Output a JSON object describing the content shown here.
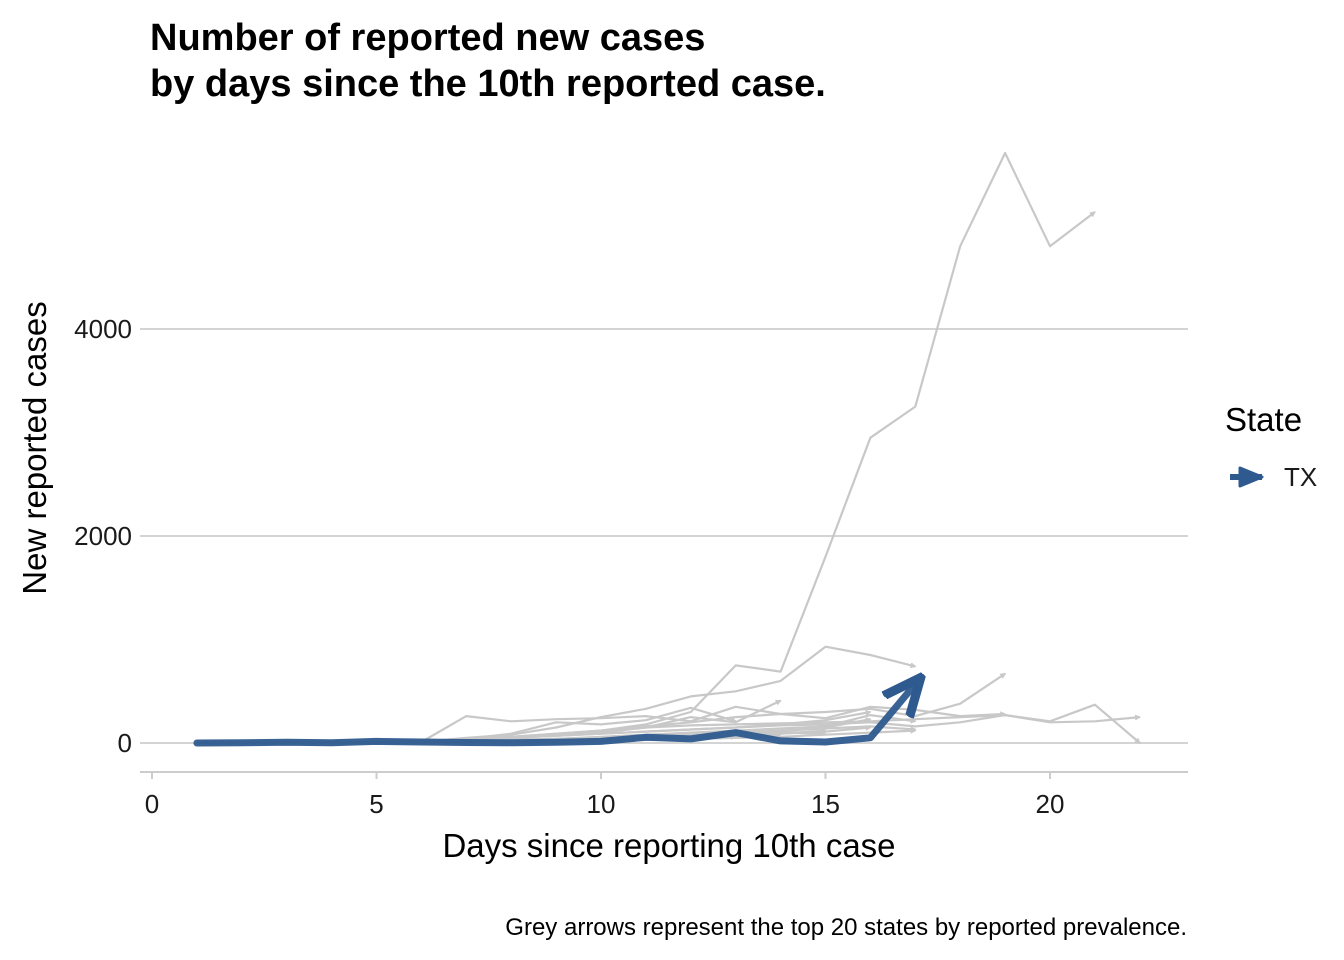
{
  "chart_data": {
    "type": "line",
    "title_lines": [
      "Number of reported new cases",
      "by days since the 10th reported case."
    ],
    "xlabel": "Days since reporting 10th case",
    "ylabel": "New reported cases",
    "caption": "Grey arrows represent the top 20 states by reported prevalence.",
    "xlim": [
      0,
      23
    ],
    "ylim": [
      -250,
      5800
    ],
    "x_ticks": [
      0,
      5,
      10,
      15,
      20
    ],
    "y_ticks": [
      0,
      2000,
      4000
    ],
    "legend": {
      "title": "State",
      "placement": "right",
      "entries": [
        "TX"
      ]
    },
    "highlight_color": "#2e5a8f",
    "context_color": "#c8c8c8",
    "gridlines": "horizontal",
    "highlight_series": {
      "name": "TX",
      "x": [
        1,
        2,
        3,
        4,
        5,
        6,
        7,
        8,
        9,
        10,
        11,
        12,
        13,
        14,
        15,
        16,
        17
      ],
      "y": [
        0,
        2,
        8,
        3,
        15,
        10,
        5,
        3,
        8,
        15,
        55,
        40,
        100,
        20,
        10,
        50,
        570
      ]
    },
    "context_series": [
      {
        "x": [
          1,
          2,
          3,
          4,
          5,
          6,
          7,
          8,
          9,
          10,
          11,
          12,
          13,
          14,
          15,
          16,
          17,
          18,
          19,
          20,
          21
        ],
        "y": [
          2,
          3,
          5,
          6,
          10,
          20,
          30,
          60,
          90,
          120,
          180,
          300,
          750,
          690,
          1800,
          2950,
          3250,
          4800,
          5700,
          4800,
          5130
        ]
      },
      {
        "x": [
          1,
          2,
          3,
          4,
          5,
          6,
          7,
          8,
          9,
          10,
          11,
          12,
          13,
          14,
          15,
          16,
          17
        ],
        "y": [
          2,
          3,
          5,
          6,
          8,
          10,
          50,
          80,
          150,
          250,
          330,
          450,
          500,
          600,
          930,
          850,
          740
        ]
      },
      {
        "x": [
          1,
          2,
          3,
          4,
          5,
          6,
          7,
          8,
          9,
          10,
          11,
          12,
          13,
          14,
          15,
          16,
          17,
          18,
          19
        ],
        "y": [
          2,
          3,
          5,
          6,
          8,
          10,
          40,
          60,
          90,
          120,
          160,
          200,
          250,
          280,
          300,
          330,
          260,
          380,
          670
        ]
      },
      {
        "x": [
          1,
          2,
          3,
          4,
          5,
          6,
          7,
          8,
          9,
          10,
          11,
          12,
          13,
          14,
          15,
          16,
          17,
          18,
          19,
          20,
          21,
          22
        ],
        "y": [
          2,
          3,
          5,
          6,
          8,
          10,
          20,
          40,
          80,
          120,
          150,
          170,
          180,
          190,
          200,
          210,
          230,
          250,
          270,
          210,
          370,
          0
        ]
      },
      {
        "x": [
          1,
          2,
          3,
          4,
          5,
          6,
          7,
          8,
          9,
          10,
          11,
          12,
          13,
          14,
          15,
          16,
          17,
          18,
          19,
          20,
          21,
          22
        ],
        "y": [
          2,
          3,
          5,
          6,
          8,
          10,
          30,
          50,
          70,
          90,
          110,
          130,
          150,
          170,
          180,
          200,
          160,
          200,
          270,
          200,
          210,
          250
        ]
      },
      {
        "x": [
          1,
          2,
          3,
          4,
          5,
          6,
          7,
          8,
          9,
          10,
          11,
          12,
          13,
          14,
          15,
          16,
          17,
          18,
          19
        ],
        "y": [
          2,
          3,
          5,
          6,
          8,
          10,
          260,
          210,
          230,
          240,
          260,
          210,
          350,
          280,
          240,
          350,
          320,
          260,
          280
        ]
      },
      {
        "x": [
          1,
          2,
          3,
          4,
          5,
          6,
          7,
          8,
          9,
          10,
          11,
          12,
          13
        ],
        "y": [
          2,
          3,
          5,
          6,
          8,
          10,
          40,
          90,
          200,
          180,
          220,
          340,
          210
        ]
      },
      {
        "x": [
          1,
          2,
          3,
          4,
          5,
          6,
          7,
          8,
          9,
          10,
          11,
          12,
          13,
          14
        ],
        "y": [
          2,
          3,
          5,
          6,
          8,
          10,
          30,
          60,
          80,
          100,
          150,
          250,
          200,
          410
        ]
      },
      {
        "x": [
          1,
          2,
          3,
          4,
          5,
          6,
          7,
          8,
          9,
          10,
          11,
          12,
          13,
          14,
          15,
          16
        ],
        "y": [
          2,
          3,
          5,
          6,
          8,
          10,
          30,
          50,
          70,
          90,
          110,
          130,
          150,
          180,
          220,
          300
        ]
      },
      {
        "x": [
          1,
          2,
          3,
          4,
          5,
          6,
          7,
          8,
          9,
          10,
          11,
          12,
          13,
          14,
          15,
          16,
          17
        ],
        "y": [
          2,
          3,
          5,
          6,
          8,
          10,
          20,
          30,
          40,
          60,
          80,
          100,
          120,
          140,
          160,
          270,
          210
        ]
      },
      {
        "x": [
          1,
          2,
          3,
          4,
          5,
          6,
          7,
          8,
          9,
          10,
          11,
          12,
          13,
          14,
          15,
          16,
          17
        ],
        "y": [
          2,
          3,
          5,
          6,
          8,
          10,
          20,
          30,
          40,
          50,
          60,
          80,
          100,
          120,
          140,
          160,
          130
        ]
      },
      {
        "x": [
          1,
          2,
          3,
          4,
          5,
          6,
          7,
          8,
          9,
          10,
          11,
          12,
          13,
          14,
          15,
          16
        ],
        "y": [
          2,
          3,
          5,
          6,
          8,
          10,
          15,
          25,
          35,
          45,
          60,
          75,
          90,
          110,
          150,
          230
        ]
      },
      {
        "x": [
          1,
          2,
          3,
          4,
          5,
          6,
          7,
          8,
          9,
          10,
          11,
          12,
          13,
          14,
          15
        ],
        "y": [
          2,
          3,
          5,
          6,
          8,
          10,
          15,
          20,
          30,
          40,
          50,
          60,
          70,
          90,
          120
        ]
      },
      {
        "x": [
          1,
          2,
          3,
          4,
          5,
          6,
          7,
          8,
          9,
          10,
          11,
          12,
          13,
          14
        ],
        "y": [
          2,
          3,
          5,
          6,
          8,
          10,
          15,
          20,
          25,
          30,
          40,
          50,
          60,
          80
        ]
      },
      {
        "x": [
          1,
          2,
          3,
          4,
          5,
          6,
          7,
          8,
          9,
          10,
          11,
          12,
          13
        ],
        "y": [
          2,
          3,
          5,
          6,
          8,
          10,
          12,
          15,
          20,
          25,
          30,
          40,
          60
        ]
      },
      {
        "x": [
          1,
          2,
          3,
          4,
          5,
          6,
          7,
          8,
          9,
          10,
          11,
          12,
          13,
          14,
          15
        ],
        "y": [
          2,
          3,
          5,
          6,
          8,
          10,
          12,
          15,
          20,
          25,
          40,
          60,
          80,
          100,
          90
        ]
      },
      {
        "x": [
          1,
          2,
          3,
          4,
          5,
          6,
          7,
          8,
          9,
          10,
          11,
          12
        ],
        "y": [
          2,
          3,
          5,
          6,
          8,
          10,
          12,
          15,
          20,
          25,
          30,
          35
        ]
      },
      {
        "x": [
          1,
          2,
          3,
          4,
          5,
          6,
          7,
          8,
          9,
          10,
          11,
          12,
          13,
          14,
          15,
          16
        ],
        "y": [
          2,
          3,
          5,
          6,
          8,
          10,
          12,
          15,
          20,
          30,
          40,
          50,
          70,
          90,
          110,
          150
        ]
      },
      {
        "x": [
          1,
          2,
          3,
          4,
          5,
          6,
          7,
          8,
          9,
          10,
          11,
          12,
          13,
          14,
          15,
          16,
          17
        ],
        "y": [
          2,
          3,
          5,
          6,
          8,
          10,
          12,
          15,
          20,
          25,
          30,
          40,
          50,
          60,
          80,
          100,
          120
        ]
      },
      {
        "x": [
          1,
          2,
          3,
          4,
          5,
          6,
          7,
          8,
          9,
          10,
          11,
          12,
          13,
          14
        ],
        "y": [
          2,
          3,
          5,
          6,
          8,
          10,
          12,
          15,
          20,
          25,
          30,
          40,
          50,
          60
        ]
      }
    ]
  }
}
